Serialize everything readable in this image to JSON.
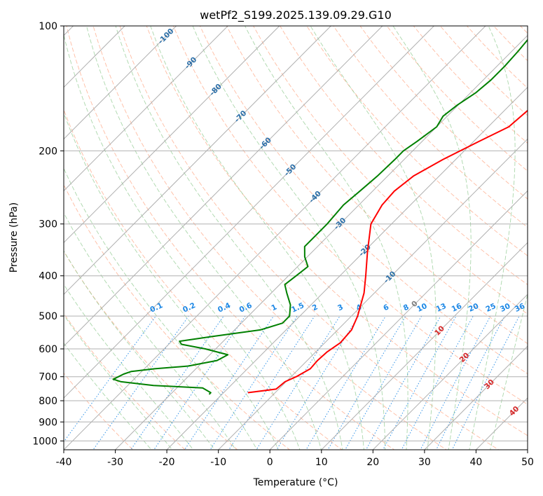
{
  "chart_data": {
    "type": "line",
    "title": "wetPf2_S199.2025.139.09.29.G10",
    "xlabel": "Temperature (°C)",
    "ylabel": "Pressure (hPa)",
    "xlim": [
      -40,
      50
    ],
    "ylim": [
      1050,
      100
    ],
    "y_scale": "log",
    "grid": true,
    "x_ticks": [
      "-40",
      "-30",
      "-20",
      "-10",
      "0",
      "10",
      "20",
      "30",
      "40",
      "50"
    ],
    "y_ticks": [
      "100",
      "200",
      "300",
      "400",
      "500",
      "600",
      "700",
      "800",
      "900",
      "1000"
    ],
    "skew_t": true,
    "series": [
      {
        "color": "#ff0000",
        "points": [
          {
            "p": 765,
            "t": -15.3
          },
          {
            "p": 750,
            "t": -10.5
          },
          {
            "p": 720,
            "t": -10.2
          },
          {
            "p": 700,
            "t": -9.0
          },
          {
            "p": 670,
            "t": -7.8
          },
          {
            "p": 640,
            "t": -8.0
          },
          {
            "p": 610,
            "t": -7.8
          },
          {
            "p": 580,
            "t": -7.0
          },
          {
            "p": 540,
            "t": -7.3
          },
          {
            "p": 500,
            "t": -8.8
          },
          {
            "p": 440,
            "t": -12.0
          },
          {
            "p": 400,
            "t": -15.0
          },
          {
            "p": 350,
            "t": -19.3
          },
          {
            "p": 300,
            "t": -24.0
          },
          {
            "p": 270,
            "t": -25.5
          },
          {
            "p": 250,
            "t": -25.8
          },
          {
            "p": 230,
            "t": -25.0
          },
          {
            "p": 210,
            "t": -22.5
          },
          {
            "p": 190,
            "t": -19.0
          },
          {
            "p": 175,
            "t": -16.0
          },
          {
            "p": 160,
            "t": -15.5
          },
          {
            "p": 150,
            "t": -15.0
          },
          {
            "p": 140,
            "t": -13.0
          },
          {
            "p": 130,
            "t": -11.5
          },
          {
            "p": 120,
            "t": -10.8
          },
          {
            "p": 110,
            "t": -10.0
          },
          {
            "p": 100,
            "t": -9.3
          }
        ]
      },
      {
        "color": "#008000",
        "points": [
          {
            "p": 772,
            "t": -22.5
          },
          {
            "p": 765,
            "t": -22.5
          },
          {
            "p": 745,
            "t": -25.0
          },
          {
            "p": 735,
            "t": -35.0
          },
          {
            "p": 720,
            "t": -42.0
          },
          {
            "p": 710,
            "t": -44.0
          },
          {
            "p": 700,
            "t": -43.5
          },
          {
            "p": 690,
            "t": -43.0
          },
          {
            "p": 680,
            "t": -42.0
          },
          {
            "p": 670,
            "t": -38.0
          },
          {
            "p": 660,
            "t": -32.0
          },
          {
            "p": 640,
            "t": -27.5
          },
          {
            "p": 620,
            "t": -26.5
          },
          {
            "p": 600,
            "t": -32.0
          },
          {
            "p": 585,
            "t": -37.5
          },
          {
            "p": 575,
            "t": -38.5
          },
          {
            "p": 560,
            "t": -33.0
          },
          {
            "p": 540,
            "t": -25.0
          },
          {
            "p": 520,
            "t": -22.0
          },
          {
            "p": 500,
            "t": -22.0
          },
          {
            "p": 470,
            "t": -24.0
          },
          {
            "p": 440,
            "t": -27.0
          },
          {
            "p": 420,
            "t": -29.0
          },
          {
            "p": 400,
            "t": -28.5
          },
          {
            "p": 380,
            "t": -28.0
          },
          {
            "p": 360,
            "t": -30.5
          },
          {
            "p": 340,
            "t": -32.5
          },
          {
            "p": 320,
            "t": -32.5
          },
          {
            "p": 300,
            "t": -32.5
          },
          {
            "p": 270,
            "t": -33.0
          },
          {
            "p": 250,
            "t": -32.5
          },
          {
            "p": 230,
            "t": -32.0
          },
          {
            "p": 210,
            "t": -31.8
          },
          {
            "p": 200,
            "t": -31.8
          },
          {
            "p": 190,
            "t": -31.0
          },
          {
            "p": 175,
            "t": -30.0
          },
          {
            "p": 165,
            "t": -30.8
          },
          {
            "p": 155,
            "t": -30.2
          },
          {
            "p": 145,
            "t": -29.0
          },
          {
            "p": 135,
            "t": -28.5
          },
          {
            "p": 125,
            "t": -28.5
          },
          {
            "p": 115,
            "t": -28.8
          },
          {
            "p": 107,
            "t": -29.2
          },
          {
            "p": 100,
            "t": -29.3
          }
        ]
      }
    ],
    "isotherm_labels": [
      {
        "t": -100,
        "text": "-100"
      },
      {
        "t": -90,
        "text": "-90"
      },
      {
        "t": -80,
        "text": "-80"
      },
      {
        "t": -70,
        "text": "-70"
      },
      {
        "t": -60,
        "text": "-60"
      },
      {
        "t": -50,
        "text": "-50"
      },
      {
        "t": -40,
        "text": "-40"
      },
      {
        "t": -30,
        "text": "-30"
      },
      {
        "t": -20,
        "text": "-20"
      },
      {
        "t": -10,
        "text": "-10"
      },
      {
        "t": 0,
        "text": "0"
      },
      {
        "t": 10,
        "text": "10"
      },
      {
        "t": 20,
        "text": "20"
      },
      {
        "t": 30,
        "text": "30"
      },
      {
        "t": 40,
        "text": "40"
      }
    ],
    "mixing_ratio_labels": [
      "0.1",
      "0.2",
      "0.4",
      "0.6",
      "1",
      "1.5",
      "2",
      "3",
      "4",
      "6",
      "8",
      "10",
      "13",
      "16",
      "20",
      "25",
      "30",
      "36"
    ],
    "colors": {
      "temperature": "#ff0000",
      "dewpoint": "#008000",
      "isotherm_label_cold": "#2c6fa8",
      "isotherm_label_zero": "#808080",
      "isotherm_label_warm": "#d62728",
      "mixing_ratio": "#1e88e5",
      "dry_adiabat": "#ffa07a",
      "moist_adiabat": "#8fc98f",
      "grid": "#b0b0b0"
    }
  }
}
